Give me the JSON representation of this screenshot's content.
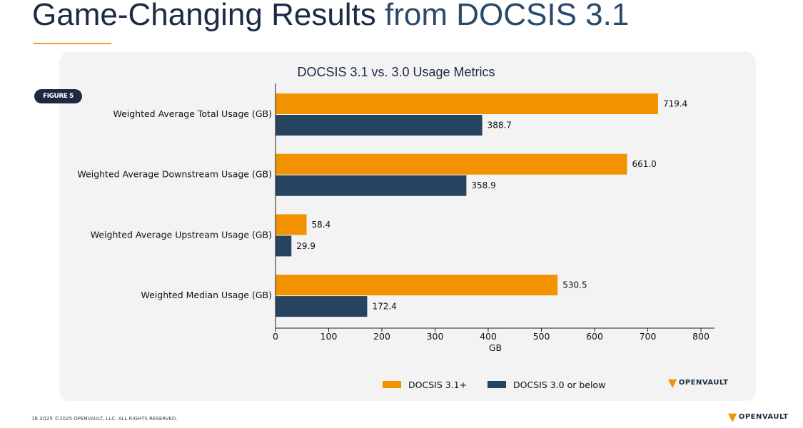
{
  "header": {
    "title_main": "Game-Changing Results",
    "title_accent": "from DOCSIS 3.1"
  },
  "badge": "FIGURE 5",
  "footer": {
    "text": "18  3Q25 ©2025 OPENVAULT, LLC. ALL RIGHTS RESERVED."
  },
  "logo": {
    "text": "OPENVAULT"
  },
  "chart_data": {
    "type": "bar",
    "orientation": "horizontal",
    "title": "DOCSIS 3.1 vs. 3.0 Usage Metrics",
    "xlabel": "GB",
    "ylabel": "",
    "xlim": [
      0,
      800
    ],
    "xticks": [
      0,
      100,
      200,
      300,
      400,
      500,
      600,
      700,
      800
    ],
    "categories": [
      "Weighted Average Total Usage (GB)",
      "Weighted Average Downstream Usage (GB)",
      "Weighted Average Upstream Usage (GB)",
      "Weighted Median Usage (GB)"
    ],
    "series": [
      {
        "name": "DOCSIS 3.1+",
        "color": "#f39200",
        "values": [
          719.4,
          661.0,
          58.4,
          530.5
        ],
        "labels": [
          "719.4",
          "661.0",
          "58.4",
          "530.5"
        ]
      },
      {
        "name": "DOCSIS 3.0 or below",
        "color": "#26435f",
        "values": [
          388.7,
          358.9,
          29.9,
          172.4
        ],
        "labels": [
          "388.7",
          "358.9",
          "29.9",
          "172.4"
        ]
      }
    ],
    "legend": "bottom",
    "grid": false
  }
}
